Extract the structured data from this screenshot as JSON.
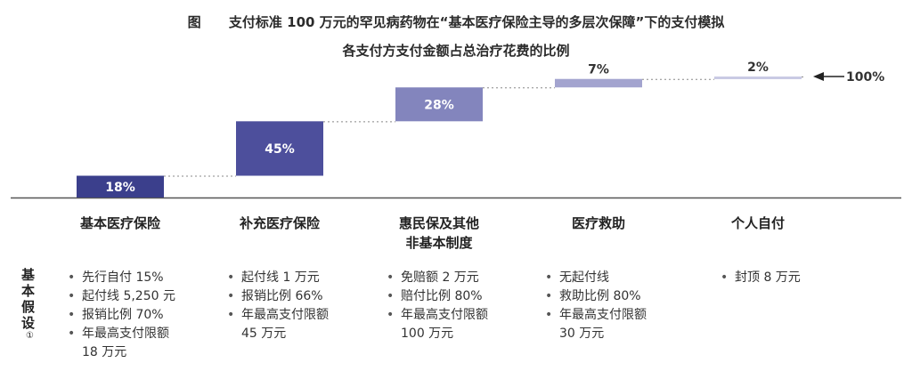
{
  "title_line1": "图      支付标准 100 万元的罕见病药物在“基本医疗保险主导的多层次保障”下的支付模拟",
  "title_line2": "各支付方支付金额占总治疗花费的比例",
  "total_label": "100%",
  "assumptions_label": "基本假设",
  "assumptions_note": "①",
  "chart_data": {
    "type": "waterfall",
    "title": "各支付方支付金额占总治疗花费的比例",
    "categories": [
      "基本医疗保险",
      "补充医疗保险",
      "惠民保及其他\n非基本制度",
      "医疗救助",
      "个人自付"
    ],
    "values": [
      18,
      45,
      28,
      7,
      2
    ],
    "labels": [
      "18%",
      "45%",
      "28%",
      "7%",
      "2%"
    ],
    "total": 100,
    "colors": [
      "#3b3f8c",
      "#4d4f9c",
      "#8385bd",
      "#a3a4cf",
      "#c9cae4"
    ]
  },
  "assumptions": [
    [
      "先行自付 15%",
      "起付线 5,250 元",
      "报销比例 70%",
      "年最高支付限额\n18 万元"
    ],
    [
      "起付线 1 万元",
      "报销比例 66%",
      "年最高支付限额\n45 万元"
    ],
    [
      "免赔额 2 万元",
      "赔付比例 80%",
      "年最高支付限额\n100 万元"
    ],
    [
      "无起付线",
      "救助比例 80%",
      "年最高支付限额\n30 万元"
    ],
    [
      "封顶 8 万元"
    ]
  ]
}
